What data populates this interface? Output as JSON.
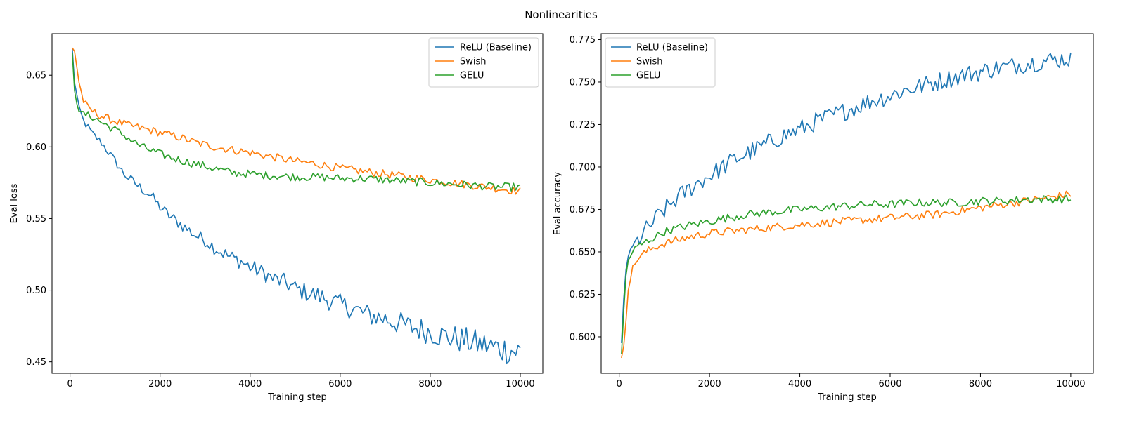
{
  "figure": {
    "suptitle": "Nonlinearities"
  },
  "colors": {
    "relu": "#1f77b4",
    "swish": "#ff7f0e",
    "gelu": "#2ca02c"
  },
  "chart_data": [
    {
      "type": "line",
      "xlabel": "Training step",
      "ylabel": "Eval loss",
      "xlim": [
        -400,
        10500
      ],
      "ylim": [
        0.442,
        0.679
      ],
      "xticks": [
        0,
        2000,
        4000,
        6000,
        8000,
        10000
      ],
      "xtick_labels": [
        "0",
        "2000",
        "4000",
        "6000",
        "8000",
        "10000"
      ],
      "yticks": [
        0.45,
        0.5,
        0.55,
        0.6,
        0.65
      ],
      "ytick_labels": [
        "0.45",
        "0.50",
        "0.55",
        "0.60",
        "0.65"
      ],
      "legend_position": "upper right",
      "series": [
        {
          "name": "ReLU (Baseline)",
          "color": "#1f77b4",
          "points": [
            [
              50,
              0.668
            ],
            [
              100,
              0.645
            ],
            [
              200,
              0.628
            ],
            [
              300,
              0.618
            ],
            [
              500,
              0.609
            ],
            [
              700,
              0.603
            ],
            [
              1000,
              0.59
            ],
            [
              1200,
              0.581
            ],
            [
              1500,
              0.573
            ],
            [
              1800,
              0.566
            ],
            [
              2000,
              0.558
            ],
            [
              2200,
              0.552
            ],
            [
              2500,
              0.545
            ],
            [
              2800,
              0.538
            ],
            [
              3000,
              0.535
            ],
            [
              3200,
              0.53
            ],
            [
              3500,
              0.524
            ],
            [
              3800,
              0.52
            ],
            [
              4000,
              0.516
            ],
            [
              4300,
              0.512
            ],
            [
              4500,
              0.508
            ],
            [
              4800,
              0.505
            ],
            [
              5000,
              0.501
            ],
            [
              5300,
              0.498
            ],
            [
              5600,
              0.495
            ],
            [
              6000,
              0.49
            ],
            [
              6300,
              0.487
            ],
            [
              6600,
              0.483
            ],
            [
              7000,
              0.48
            ],
            [
              7300,
              0.477
            ],
            [
              7600,
              0.474
            ],
            [
              8000,
              0.471
            ],
            [
              8300,
              0.468
            ],
            [
              8600,
              0.466
            ],
            [
              9000,
              0.463
            ],
            [
              9300,
              0.461
            ],
            [
              9600,
              0.459
            ],
            [
              10000,
              0.457
            ]
          ]
        },
        {
          "name": "Swish",
          "color": "#ff7f0e",
          "points": [
            [
              50,
              0.669
            ],
            [
              100,
              0.667
            ],
            [
              200,
              0.645
            ],
            [
              300,
              0.632
            ],
            [
              400,
              0.627
            ],
            [
              600,
              0.623
            ],
            [
              800,
              0.62
            ],
            [
              1000,
              0.618
            ],
            [
              1300,
              0.615
            ],
            [
              1600,
              0.613
            ],
            [
              2000,
              0.61
            ],
            [
              2400,
              0.607
            ],
            [
              2800,
              0.603
            ],
            [
              3200,
              0.6
            ],
            [
              3600,
              0.598
            ],
            [
              4000,
              0.596
            ],
            [
              4500,
              0.593
            ],
            [
              5000,
              0.59
            ],
            [
              5500,
              0.588
            ],
            [
              6000,
              0.585
            ],
            [
              6500,
              0.583
            ],
            [
              7000,
              0.581
            ],
            [
              7500,
              0.579
            ],
            [
              8000,
              0.577
            ],
            [
              8500,
              0.575
            ],
            [
              9000,
              0.573
            ],
            [
              9500,
              0.571
            ],
            [
              10000,
              0.569
            ]
          ]
        },
        {
          "name": "GELU",
          "color": "#2ca02c",
          "points": [
            [
              50,
              0.665
            ],
            [
              100,
              0.64
            ],
            [
              150,
              0.631
            ],
            [
              200,
              0.625
            ],
            [
              300,
              0.623
            ],
            [
              500,
              0.621
            ],
            [
              700,
              0.617
            ],
            [
              1000,
              0.612
            ],
            [
              1300,
              0.606
            ],
            [
              1600,
              0.6
            ],
            [
              2000,
              0.595
            ],
            [
              2400,
              0.591
            ],
            [
              2800,
              0.588
            ],
            [
              3200,
              0.585
            ],
            [
              3600,
              0.582
            ],
            [
              4000,
              0.581
            ],
            [
              4500,
              0.58
            ],
            [
              5000,
              0.579
            ],
            [
              5500,
              0.579
            ],
            [
              6000,
              0.578
            ],
            [
              6500,
              0.578
            ],
            [
              7000,
              0.577
            ],
            [
              7500,
              0.576
            ],
            [
              8000,
              0.575
            ],
            [
              8500,
              0.574
            ],
            [
              9000,
              0.573
            ],
            [
              9500,
              0.572
            ],
            [
              10000,
              0.572
            ]
          ]
        }
      ]
    },
    {
      "type": "line",
      "xlabel": "Training step",
      "ylabel": "Eval accuracy",
      "xlim": [
        -400,
        10500
      ],
      "ylim": [
        0.5785,
        0.7785
      ],
      "xticks": [
        0,
        2000,
        4000,
        6000,
        8000,
        10000
      ],
      "xtick_labels": [
        "0",
        "2000",
        "4000",
        "6000",
        "8000",
        "10000"
      ],
      "yticks": [
        0.6,
        0.625,
        0.65,
        0.675,
        0.7,
        0.725,
        0.75,
        0.775
      ],
      "ytick_labels": [
        "0.600",
        "0.625",
        "0.650",
        "0.675",
        "0.700",
        "0.725",
        "0.750",
        "0.775"
      ],
      "legend_position": "upper left",
      "series": [
        {
          "name": "ReLU (Baseline)",
          "color": "#1f77b4",
          "points": [
            [
              50,
              0.595
            ],
            [
              100,
              0.622
            ],
            [
              150,
              0.64
            ],
            [
              200,
              0.648
            ],
            [
              300,
              0.652
            ],
            [
              400,
              0.656
            ],
            [
              500,
              0.66
            ],
            [
              700,
              0.666
            ],
            [
              900,
              0.672
            ],
            [
              1100,
              0.677
            ],
            [
              1300,
              0.682
            ],
            [
              1500,
              0.686
            ],
            [
              1700,
              0.69
            ],
            [
              2000,
              0.695
            ],
            [
              2300,
              0.7
            ],
            [
              2600,
              0.705
            ],
            [
              3000,
              0.71
            ],
            [
              3300,
              0.714
            ],
            [
              3600,
              0.718
            ],
            [
              4000,
              0.722
            ],
            [
              4300,
              0.726
            ],
            [
              4600,
              0.729
            ],
            [
              5000,
              0.733
            ],
            [
              5300,
              0.736
            ],
            [
              5600,
              0.739
            ],
            [
              6000,
              0.742
            ],
            [
              6300,
              0.745
            ],
            [
              6600,
              0.747
            ],
            [
              7000,
              0.75
            ],
            [
              7300,
              0.752
            ],
            [
              7600,
              0.754
            ],
            [
              8000,
              0.756
            ],
            [
              8300,
              0.758
            ],
            [
              8600,
              0.759
            ],
            [
              9000,
              0.761
            ],
            [
              9300,
              0.762
            ],
            [
              9600,
              0.763
            ],
            [
              10000,
              0.764
            ]
          ]
        },
        {
          "name": "Swish",
          "color": "#ff7f0e",
          "points": [
            [
              50,
              0.587
            ],
            [
              100,
              0.595
            ],
            [
              150,
              0.61
            ],
            [
              200,
              0.628
            ],
            [
              300,
              0.64
            ],
            [
              400,
              0.646
            ],
            [
              600,
              0.65
            ],
            [
              800,
              0.653
            ],
            [
              1000,
              0.655
            ],
            [
              1300,
              0.657
            ],
            [
              1600,
              0.659
            ],
            [
              2000,
              0.661
            ],
            [
              2400,
              0.662
            ],
            [
              2800,
              0.663
            ],
            [
              3200,
              0.664
            ],
            [
              3600,
              0.665
            ],
            [
              4000,
              0.666
            ],
            [
              4500,
              0.667
            ],
            [
              5000,
              0.668
            ],
            [
              5500,
              0.669
            ],
            [
              6000,
              0.67
            ],
            [
              6500,
              0.671
            ],
            [
              7000,
              0.672
            ],
            [
              7500,
              0.674
            ],
            [
              8000,
              0.676
            ],
            [
              8500,
              0.678
            ],
            [
              9000,
              0.68
            ],
            [
              9500,
              0.682
            ],
            [
              10000,
              0.684
            ]
          ]
        },
        {
          "name": "GELU",
          "color": "#2ca02c",
          "points": [
            [
              50,
              0.59
            ],
            [
              100,
              0.615
            ],
            [
              150,
              0.636
            ],
            [
              200,
              0.645
            ],
            [
              300,
              0.65
            ],
            [
              400,
              0.653
            ],
            [
              600,
              0.656
            ],
            [
              800,
              0.659
            ],
            [
              1000,
              0.662
            ],
            [
              1300,
              0.664
            ],
            [
              1600,
              0.666
            ],
            [
              2000,
              0.668
            ],
            [
              2400,
              0.67
            ],
            [
              2800,
              0.672
            ],
            [
              3200,
              0.673
            ],
            [
              3600,
              0.674
            ],
            [
              4000,
              0.675
            ],
            [
              4500,
              0.676
            ],
            [
              5000,
              0.677
            ],
            [
              5500,
              0.678
            ],
            [
              6000,
              0.678
            ],
            [
              6500,
              0.679
            ],
            [
              7000,
              0.679
            ],
            [
              7500,
              0.679
            ],
            [
              8000,
              0.68
            ],
            [
              8500,
              0.68
            ],
            [
              9000,
              0.681
            ],
            [
              9500,
              0.681
            ],
            [
              10000,
              0.681
            ]
          ]
        }
      ]
    }
  ]
}
